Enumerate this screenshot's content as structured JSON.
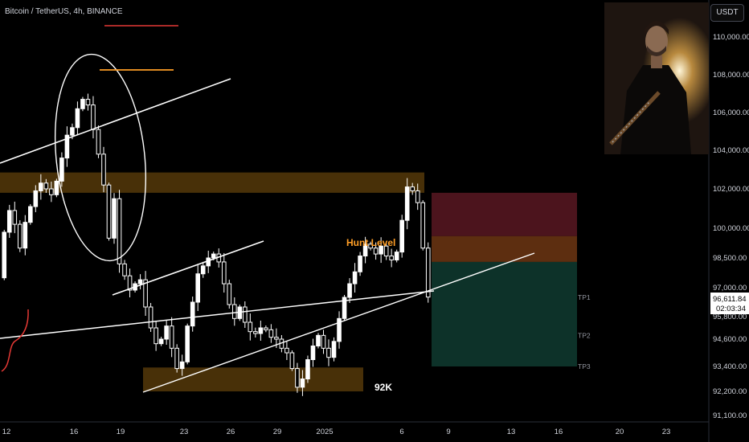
{
  "symbol_info": "Bitcoin / TetherUS, 4h, BINANCE",
  "currency_label": "USDT",
  "last_price": "96,611.84",
  "countdown": "02:03:34",
  "colors": {
    "background": "#000000",
    "candle": "#ffffff",
    "zone": "#5a3c0a",
    "stop_zone": "#4c141d",
    "entry_zone": "#5d2e10",
    "target_zone": "#0d3229",
    "hunt_text": "#ff9e26",
    "red_line": "#e53935",
    "orange_line": "#ff9e26"
  },
  "chart_data": {
    "type": "candlestick",
    "title": "",
    "xlabel": "",
    "ylabel": "",
    "x_ticks": [
      "12",
      "16",
      "19",
      "23",
      "26",
      "29",
      "2025",
      "6",
      "9",
      "13",
      "16",
      "20",
      "23"
    ],
    "y_ticks": [
      110000,
      108000,
      106000,
      104000,
      102000,
      100000,
      98500,
      97000,
      95800,
      94600,
      93400,
      92200,
      91100
    ],
    "y_tick_labels": [
      "110,000.00",
      "108,000.00",
      "106,000.00",
      "104,000.00",
      "102,000.00",
      "100,000.00",
      "98,500.00",
      "97,000.00",
      "95,800.00",
      "94,600.00",
      "93,400.00",
      "92,200.00",
      "91,100.00"
    ],
    "ylim": [
      90800,
      111500
    ],
    "close_path": [
      97500,
      99800,
      100900,
      100200,
      99000,
      100300,
      101100,
      101900,
      102300,
      102000,
      101700,
      102400,
      103600,
      104800,
      105200,
      106200,
      106700,
      106400,
      105100,
      103800,
      102200,
      99500,
      101500,
      98200,
      97600,
      96900,
      97200,
      97400,
      96200,
      95200,
      94400,
      94600,
      95300,
      94200,
      93300,
      93600,
      95300,
      96400,
      97700,
      98100,
      98500,
      98700,
      98300,
      97200,
      96300,
      95700,
      96200,
      95500,
      95000,
      94900,
      95200,
      95100,
      94700,
      94600,
      94200,
      94000,
      93300,
      92400,
      92800,
      93700,
      94300,
      94800,
      94200,
      93800,
      94500,
      95700,
      96600,
      97200,
      97800,
      98600,
      99200,
      99000,
      98700,
      99100,
      98600,
      98400,
      98800,
      100400,
      102100,
      101900,
      101300,
      99000,
      96612
    ],
    "zones": [
      {
        "low": 101800,
        "high": 102850
      },
      {
        "low": 92200,
        "high": 93350
      }
    ],
    "trade": {
      "stop_top": 101800,
      "stop_bottom": 99600,
      "entry_bottom": 98300,
      "targets": [
        {
          "label": "TP1",
          "value": 96600
        },
        {
          "label": "TP2",
          "value": 94800
        },
        {
          "label": "TP3",
          "value": 93400
        }
      ]
    },
    "annotations": [
      "Hunt Level",
      "92K"
    ]
  }
}
